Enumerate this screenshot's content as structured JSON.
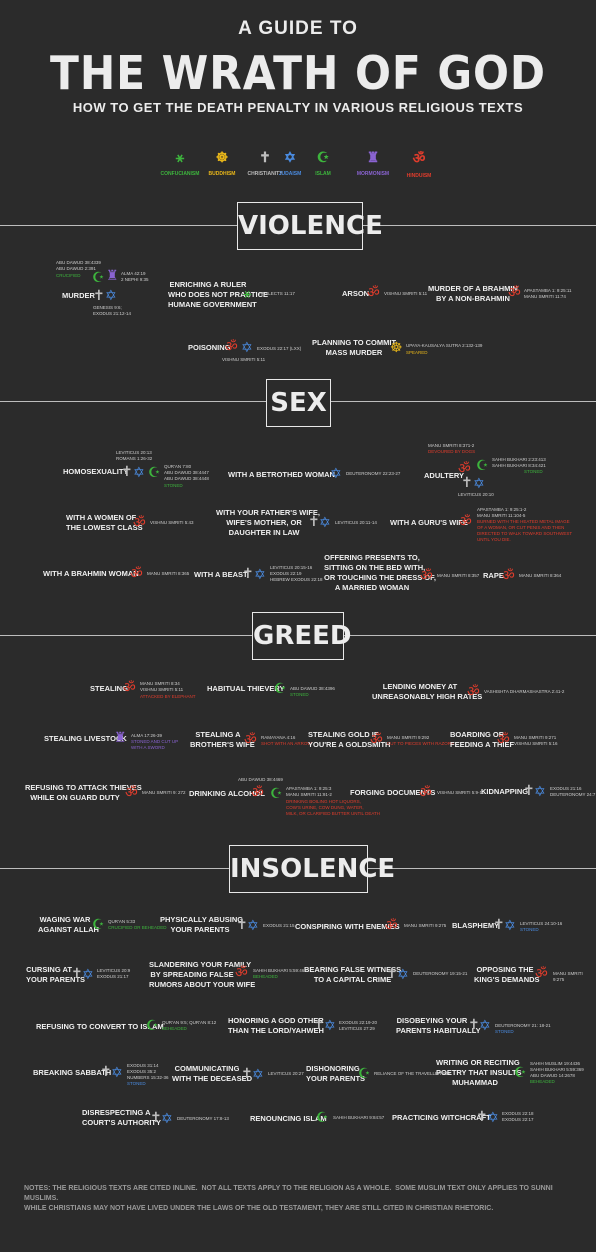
{
  "title": {
    "small": "A GUIDE TO",
    "big": "THE WRATH OF GOD",
    "sub": "HOW TO GET THE DEATH PENALTY IN VARIOUS RELIGIOUS TEXTS"
  },
  "legend": [
    {
      "name": "CONFUCIANISM",
      "icon": "confucianism-icon",
      "color": "#3db43d"
    },
    {
      "name": "BUDDHISM",
      "icon": "dharma-wheel-icon",
      "color": "#e8b619"
    },
    {
      "name": "CHRISTIANITY",
      "icon": "cross-icon",
      "color": "#bdbdbd"
    },
    {
      "name": "JUDAISM",
      "icon": "star-of-david-icon",
      "color": "#4a8be0"
    },
    {
      "name": "ISLAM",
      "icon": "crescent-icon",
      "color": "#3db43d"
    },
    {
      "name": "MORMONISM",
      "icon": "mormon-icon",
      "color": "#8a63d2"
    },
    {
      "name": "HINDUISM",
      "icon": "om-icon",
      "color": "#e03c2c"
    }
  ],
  "sections": {
    "violence": "VIOLENCE",
    "sex": "SEX",
    "greed": "GREED",
    "insolence": "INSOLENCE"
  },
  "v": {
    "murder": "MURDER",
    "murder_isl": "ABU DAWUD 38:4339\nABU DAWUD 2:391",
    "murder_isl_note": "CRUCIFIED",
    "murder_mor": "ALMA 42:19\n2 NEPHI 9:35",
    "murder_jud": "GENESIS 9:6;\nEXODUS 21:12-14",
    "ruler": "ENRICHING A RULER\nWHO DOES NOT PRACTICE\nHUMANE GOVERNMENT",
    "ruler_ref": "ANALECTS 11:17",
    "arson": "ARSON",
    "arson_ref": "VISHNU SMRITI 5:11",
    "brahmin": "MURDER OF A BRAHMIN\nBY A NON-BRAHMIN",
    "brahmin_ref": "APASTAMBA 1: 9:25:11\nMANU SMRITI 11:74",
    "poison": "POISONING",
    "poison_ref": "EXODUS 22:17 (LXX)",
    "poison_ref2": "VISHNU SMRITI 5:11",
    "mass": "PLANNING TO COMMIT\nMASS MURDER",
    "mass_ref": "UPAYA-KAUSALYA SUTRA 2:132-139",
    "mass_note": "SPEARED"
  },
  "s": {
    "homo": "HOMOSEXUALITY",
    "homo_chr": "LEVITICUS 20:13\nROMANS 1:26-32",
    "homo_isl": "QUR'AN 7:80\nABU DAWUD 38:4447\nABU DAWUD 38:4448",
    "homo_note": "STONED",
    "betrothed": "WITH A BETROTHED WOMAN",
    "betrothed_ref": "DEUTERONOMY 22:23-27",
    "adultery": "ADULTERY",
    "adultery_hin": "MANU SMRITI 8:371-2",
    "adultery_hin_note": "DEVOURED BY DOGS",
    "adultery_isl": "SAHIH BUKHARI 2:23:413\nSAHIH BUKHARI 8:34:421",
    "adultery_isl_note": "STONED",
    "adultery_chr": "LEVITICUS 20:10",
    "lowest": "WITH A WOMEN OF\nTHE LOWEST CLASS",
    "lowest_ref": "VISHNU SMRITI 5:43",
    "father": "WITH YOUR FATHER'S WIFE,\nWIFE'S MOTHER, OR\nDAUGHTER IN LAW",
    "father_ref": "LEVITICUS 20:11-14",
    "guru": "WITH A GURU'S WIFE",
    "guru_ref": "APASTAMBA 1: 9:25:1-2\nMANU SMRITI 11:104-5",
    "guru_note": "BURNED WITH THE HEATED METAL IMAGE\nOF A WOMAN, OR CUT PENIS AND THEN\nDIRECTED TO WALK TOWARD SOUTHWEST\nUNTIL YOU DIE.",
    "bwoman": "WITH A BRAHMIN WOMAN",
    "bwoman_ref": "MANU SMRITI 8:365",
    "beast": "WITH A BEAST",
    "beast_ref": "LEVITICUS 20:15-16\nEXODUS 22:19\nHEBREW EXODUS 22:18",
    "presents": "OFFERING PRESENTS TO,\nSITTING ON THE BED WITH,\nOR TOUCHING THE DRESS OF,\nA MARRIED WOMAN",
    "presents_ref": "MANU SMRITI 8:357",
    "rape": "RAPE",
    "rape_ref": "MANU SMRITI 8:364"
  },
  "g": {
    "steal": "STEALING",
    "steal_ref": "MANU SMRITI 8:34\nVISHNU SMRITI 5:11",
    "steal_note": "ATTACKED BY ELEPHANT",
    "thievery": "HABITUAL THIEVERY",
    "thievery_ref": "ABU DAWUD 38:4396",
    "thievery_note": "STONED",
    "lending": "LENDING MONEY AT\nUNREASONABLY HIGH RATES",
    "lending_ref": "VASHISHTA DHARMASHASTRA 2:41-2",
    "livestock": "STEALING LIVESTOCK",
    "livestock_ref": "ALMA 17:26-39",
    "livestock_note": "STONED AND CUT UP\nWITH A SWORD",
    "brother": "STEALING A\nBROTHER'S WIFE",
    "brother_ref": "RAMAYANA 4:16",
    "brother_note": "SHOT WITH AN ARROW",
    "gold": "STEALING GOLD IF\nYOU'RE A GOLDSMITH",
    "gold_ref": "MANU SMRITI 9:292",
    "gold_note": "CUT TO PIECES WITH RAZORS",
    "boarding": "BOARDING OR\nFEEDING A THIEF",
    "boarding_ref": "MANU SMRITI 9:271\nVISHNU SMRITI 5:16",
    "refuse": "REFUSING TO ATTACK THIEVES\nWHILE ON GUARD DUTY",
    "refuse_ref": "MANU SMRITI 9: 272",
    "alcohol": "DRINKING ALCOHOL",
    "alcohol_isl": "ABU DAWUD 38:4469",
    "alcohol_hin": "APASTAMBA 1: 9:25:3\nMANU SMRITI 11:91-2",
    "alcohol_note": "DRINKING BOILING HOT LIQUORS,\nCOW'S URINE, COW DUNG, WATER,\nMILK, OR CLARIFIED BUTTER UNTIL DEATH",
    "forging": "FORGING DOCUMENTS",
    "forging_ref": "VISHNU SMRITI 5:9-10",
    "kidnap": "KIDNAPPING",
    "kidnap_ref": "EXODUS 21:16\nDEUTERONOMY 24:7"
  },
  "i": {
    "waging": "WAGING WAR\nAGAINST ALLAH",
    "waging_ref": "QUR'AN 5:33",
    "waging_note": "CRUCIFIED OR BEHEADED",
    "abusing": "PHYSICALLY ABUSING\nYOUR PARENTS",
    "abusing_ref": "EXODUS 21:15",
    "conspire": "CONSPIRING WITH ENEMIES",
    "conspire_ref": "MANU SMRITI 9:275",
    "blasphemy": "BLASPHEMY",
    "blasphemy_ref": "LEVITICUS 24:10-16",
    "blasphemy_note": "STONED",
    "cursing": "CURSING AT\nYOUR PARENTS",
    "cursing_ref": "LEVITICUS 20:9\nEXODUS 21:17",
    "slander": "SLANDERING YOUR FAMILY\nBY SPREADING FALSE\nRUMORS ABOUT YOUR WIFE",
    "slander_ref": "SAHIH BUKHARI 5:59:462",
    "slander_note": "BEHEADED",
    "witness": "BEARING FALSE WITNESS\nTO A CAPITAL CRIME",
    "witness_ref": "DEUTERONOMY 19:15-21",
    "opposing": "OPPOSING THE\nKING'S DEMANDS",
    "opposing_ref": "MANU SMRITI 9:275",
    "convert": "REFUSING TO CONVERT TO ISLAM",
    "convert_ref": "QUR'AN 9:5; QUR'AN 8:12",
    "convert_note": "BEHEADED",
    "honoring": "HONORING A GOD OTHER\nTHAN THE LORD/YAHWEH",
    "honoring_ref": "EXODUS 22:19-20\nLEVITICUS 27:29",
    "disobey": "DISOBEYING YOUR\nPARENTS HABITUALLY",
    "disobey_ref": "DEUTERONOMY 21: 18-21",
    "disobey_note": "STONED",
    "sabbath": "BREAKING SABBATH",
    "sabbath_ref": "EXODUS 31:14\nEXODUS 35:2\nNUMBERS 15:32-36",
    "sabbath_note": "STONED",
    "deceased": "COMMUNICATING\nWITH THE DECEASED",
    "deceased_ref": "LEVITICUS 20:27",
    "dishonor": "DISHONORING\nYOUR PARENTS",
    "dishonor_ref": "RELIANCE OF THE TRAVELLER P28",
    "poetry": "WRITING OR RECITING\nPOETRY THAT INSULTS\nMUHAMMAD",
    "poetry_ref": "SAHIH MUSLIM 19:4436\nSAHIH BUKHARI 5:59:369\nABU DAWUD 14:2678",
    "poetry_note": "BEHEADED",
    "court": "DISRESPECTING A\nCOURT'S AUTHORITY",
    "court_ref": "DEUTERONOMY 17:8-13",
    "renounce": "RENOUNCING ISLAM",
    "renounce_ref": "SAHIH BUKHARI 9:84:57",
    "witch": "PRACTICING WITCHCRAFT",
    "witch_ref": "EXODUS 22:18\nEXODUS 22:17"
  },
  "notes": "NOTES: THE RELIGIOUS TEXTS ARE CITED INLINE.  NOT ALL TEXTS APPLY TO THE RELIGION AS A WHOLE.  SOME MUSLIM TEXT ONLY APPLIES TO SUNNI MUSLIMS.\nWHILE CHRISTIANS MAY NOT HAVE LIVED UNDER THE LAWS OF THE OLD TESTAMENT, THEY ARE STILL CITED IN CHRISTIAN RHETORIC."
}
